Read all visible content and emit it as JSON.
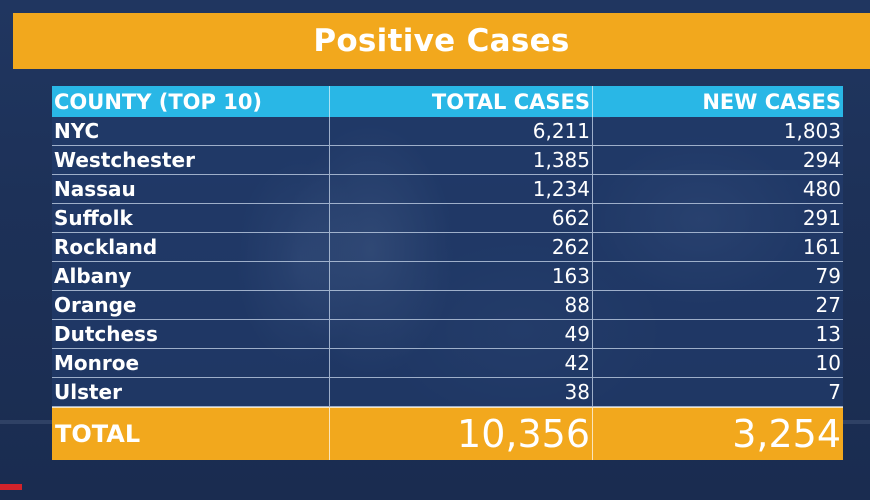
{
  "banner": {
    "title": "Positive Cases",
    "color": "#f2a81d"
  },
  "table": {
    "header_color": "#29b7e6",
    "headers": [
      "COUNTY (TOP 10)",
      "TOTAL CASES",
      "NEW CASES"
    ],
    "rows": [
      {
        "county": "NYC",
        "total": "6,211",
        "new": "1,803"
      },
      {
        "county": "Westchester",
        "total": "1,385",
        "new": "294"
      },
      {
        "county": "Nassau",
        "total": "1,234",
        "new": "480"
      },
      {
        "county": "Suffolk",
        "total": "662",
        "new": "291"
      },
      {
        "county": "Rockland",
        "total": "262",
        "new": "161"
      },
      {
        "county": "Albany",
        "total": "163",
        "new": "79"
      },
      {
        "county": "Orange",
        "total": "88",
        "new": "27"
      },
      {
        "county": "Dutchess",
        "total": "49",
        "new": "13"
      },
      {
        "county": "Monroe",
        "total": "42",
        "new": "10"
      },
      {
        "county": "Ulster",
        "total": "38",
        "new": "7"
      }
    ],
    "total": {
      "label": "TOTAL",
      "total": "10,356",
      "new": "3,254"
    }
  }
}
